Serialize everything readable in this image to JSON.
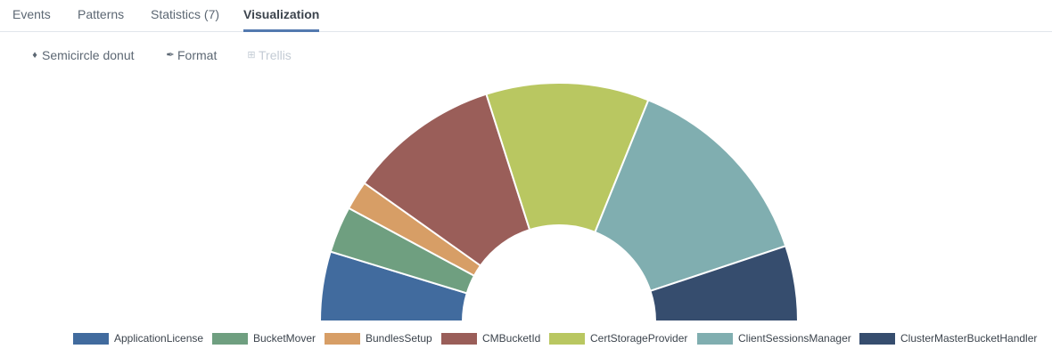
{
  "tabs": [
    {
      "label": "Events",
      "active": false
    },
    {
      "label": "Patterns",
      "active": false
    },
    {
      "label": "Statistics (7)",
      "active": false
    },
    {
      "label": "Visualization",
      "active": true
    }
  ],
  "toolbar": {
    "chart_type_label": "Semicircle donut",
    "chart_type_icon": "puzzle-icon",
    "format_label": "Format",
    "format_icon": "brush-icon",
    "trellis_label": "Trellis",
    "trellis_icon": "grid-icon",
    "trellis_disabled": true
  },
  "chart_data": {
    "type": "pie",
    "variant": "semicircle-donut",
    "title": "",
    "legend_position": "bottom",
    "categories": [
      "ApplicationLicense",
      "BucketMover",
      "BundlesSetup",
      "CMBucketId",
      "CertStorageProvider",
      "ClientSessionsManager",
      "ClusterMasterBucketHandler"
    ],
    "values": [
      6,
      4,
      2.5,
      13,
      14,
      17.5,
      6.5
    ],
    "colors": [
      "#416b9e",
      "#6f9f80",
      "#d79e66",
      "#9a5e59",
      "#b9c761",
      "#80aeb0",
      "#364d6e"
    ]
  }
}
